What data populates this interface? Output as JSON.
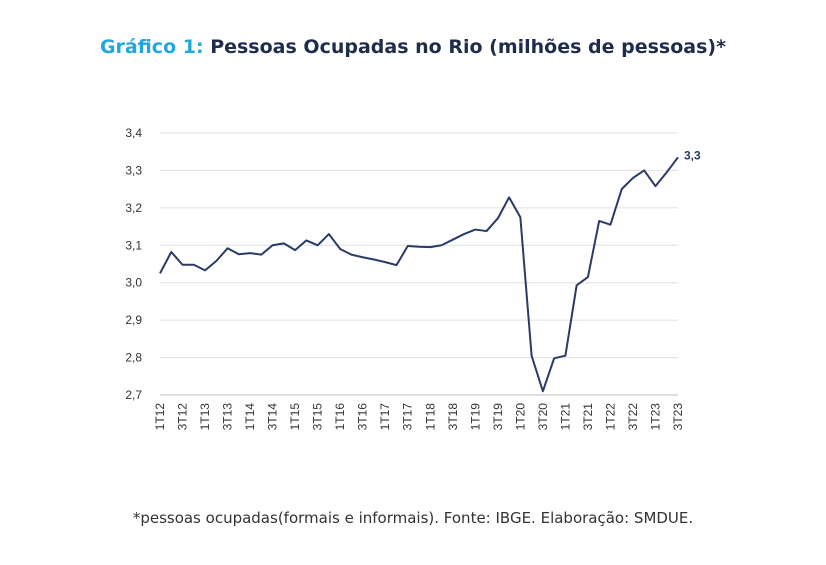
{
  "title": {
    "prefix": "Gráfico 1:",
    "main": "Pessoas Ocupadas no Rio (milhões de pessoas)*"
  },
  "footnote": "*pessoas ocupadas(formais e informais). Fonte: IBGE. Elaboração: SMDUE.",
  "chart_data": {
    "type": "line",
    "title": "Pessoas Ocupadas no Rio (milhões de pessoas)*",
    "xlabel": "",
    "ylabel": "",
    "ylim": [
      2.7,
      3.4
    ],
    "yticks": [
      "3,4",
      "3,3",
      "3,2",
      "3,1",
      "3,0",
      "2,9",
      "2,8",
      "2,7"
    ],
    "ytick_values": [
      3.4,
      3.3,
      3.2,
      3.1,
      3.0,
      2.9,
      2.8,
      2.7
    ],
    "grid": true,
    "line_color": "#2b3a67",
    "grid_color": "#e0e0e0",
    "end_label": "3,3",
    "x_tick_labels": [
      "1T12",
      "3T12",
      "1T13",
      "3T13",
      "1T14",
      "3T14",
      "1T15",
      "3T15",
      "1T16",
      "3T16",
      "1T17",
      "3T17",
      "1T18",
      "3T18",
      "1T19",
      "3T19",
      "1T20",
      "3T20",
      "1T21",
      "3T21",
      "1T22",
      "3T22",
      "1T23",
      "3T23"
    ],
    "x": [
      "1T12",
      "2T12",
      "3T12",
      "4T12",
      "1T13",
      "2T13",
      "3T13",
      "4T13",
      "1T14",
      "2T14",
      "3T14",
      "4T14",
      "1T15",
      "2T15",
      "3T15",
      "4T15",
      "1T16",
      "2T16",
      "3T16",
      "4T16",
      "1T17",
      "2T17",
      "3T17",
      "4T17",
      "1T18",
      "2T18",
      "3T18",
      "4T18",
      "1T19",
      "2T19",
      "3T19",
      "4T19",
      "1T20",
      "2T20",
      "3T20",
      "4T20",
      "1T21",
      "2T21",
      "3T21",
      "4T21",
      "1T22",
      "2T22",
      "3T22",
      "4T22",
      "1T23",
      "2T23",
      "3T23"
    ],
    "values": [
      3.025,
      3.082,
      3.048,
      3.048,
      3.033,
      3.058,
      3.092,
      3.076,
      3.079,
      3.075,
      3.1,
      3.105,
      3.087,
      3.113,
      3.1,
      3.13,
      3.09,
      3.075,
      3.068,
      3.062,
      3.055,
      3.047,
      3.098,
      3.096,
      3.095,
      3.1,
      3.115,
      3.13,
      3.142,
      3.138,
      3.172,
      3.228,
      3.175,
      2.805,
      2.71,
      2.798,
      2.805,
      2.993,
      3.015,
      3.165,
      3.155,
      3.25,
      3.28,
      3.3,
      3.258,
      3.295,
      3.335
    ]
  }
}
